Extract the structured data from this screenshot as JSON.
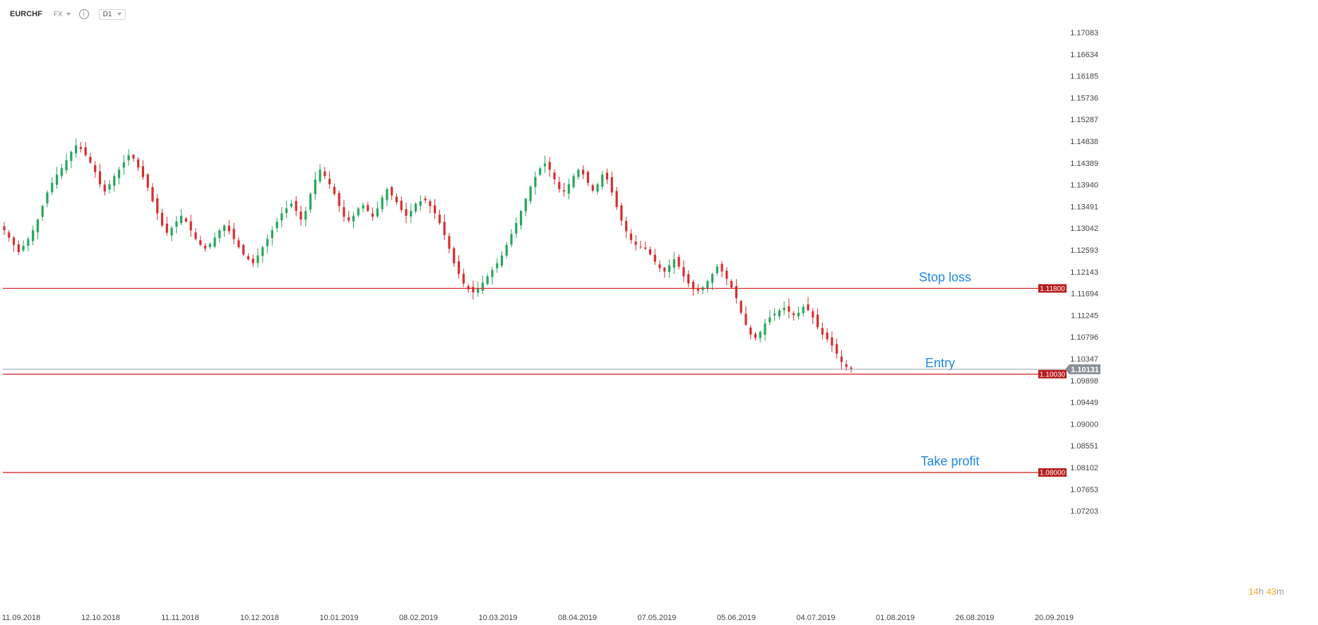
{
  "toolbar": {
    "symbol": "EURCHF",
    "market": "FX",
    "info_icon": "info-icon",
    "timeframe": "D1"
  },
  "price_axis": {
    "ticks": [
      "1.17083",
      "1.16634",
      "1.16185",
      "1.15736",
      "1.15287",
      "1.14838",
      "1.14389",
      "1.13940",
      "1.13491",
      "1.13042",
      "1.12593",
      "1.12143",
      "1.11694",
      "1.11245",
      "1.10796",
      "1.10347",
      "1.09898",
      "1.09449",
      "1.09000",
      "1.08551",
      "1.08102",
      "1.07653",
      "1.07203"
    ]
  },
  "time_axis": {
    "ticks": [
      "11.09.2018",
      "12.10.2018",
      "11.11.2018",
      "10.12.2018",
      "10.01.2019",
      "08.02.2019",
      "10.03.2019",
      "08.04.2019",
      "07.05.2019",
      "05.06.2019",
      "04.07.2019",
      "01.08.2019",
      "26.08.2019",
      "20.09.2019"
    ]
  },
  "levels": {
    "stop_loss": {
      "name": "Stop loss",
      "price": 1.118,
      "tag": "1.11800"
    },
    "entry": {
      "name": "Entry",
      "price": 1.1003,
      "tag": "1.10030"
    },
    "take_profit": {
      "name": "Take profit",
      "price": 1.08,
      "tag": "1.08000"
    }
  },
  "current_price": {
    "price": 1.10131,
    "tag": "1.10131"
  },
  "timer": {
    "hours": "14",
    "h_unit": "h",
    "minutes": "43",
    "m_unit": "m"
  },
  "colors": {
    "bull": "#26a65b",
    "bear": "#d32f2f",
    "level_line": "#d32f2f",
    "level_tag": "#b71c1c",
    "label_text": "#1e88e5",
    "current_tag": "#8a8f98"
  },
  "chart_data": {
    "type": "candlestick",
    "title": "",
    "xlabel": "",
    "ylabel": "",
    "ylim": [
      1.07203,
      1.17083
    ],
    "close_path": [
      1.13,
      1.1285,
      1.127,
      1.1255,
      1.1268,
      1.1282,
      1.13,
      1.1322,
      1.135,
      1.1378,
      1.1398,
      1.1415,
      1.1428,
      1.1445,
      1.1462,
      1.1475,
      1.1468,
      1.1455,
      1.144,
      1.142,
      1.1395,
      1.138,
      1.1395,
      1.1412,
      1.1425,
      1.144,
      1.1455,
      1.1448,
      1.143,
      1.141,
      1.1388,
      1.136,
      1.1335,
      1.131,
      1.1295,
      1.1305,
      1.1318,
      1.133,
      1.1318,
      1.13,
      1.1282,
      1.127,
      1.1262,
      1.1272,
      1.1285,
      1.13,
      1.131,
      1.1298,
      1.1282,
      1.1265,
      1.125,
      1.124,
      1.1232,
      1.1248,
      1.1265,
      1.1282,
      1.13,
      1.1318,
      1.1335,
      1.1345,
      1.1355,
      1.134,
      1.1322,
      1.134,
      1.1375,
      1.1405,
      1.1425,
      1.1412,
      1.1395,
      1.1375,
      1.135,
      1.1328,
      1.132,
      1.133,
      1.1345,
      1.1352,
      1.134,
      1.1328,
      1.1345,
      1.1368,
      1.1385,
      1.1372,
      1.1358,
      1.1342,
      1.133,
      1.134,
      1.1355,
      1.136,
      1.1362,
      1.135,
      1.1335,
      1.1315,
      1.129,
      1.1262,
      1.1232,
      1.121,
      1.119,
      1.1178,
      1.1172,
      1.118,
      1.1192,
      1.1205,
      1.1218,
      1.1232,
      1.1248,
      1.127,
      1.1292,
      1.1315,
      1.134,
      1.1365,
      1.139,
      1.141,
      1.1428,
      1.1438,
      1.1425,
      1.1405,
      1.1385,
      1.138,
      1.1395,
      1.1412,
      1.1425,
      1.1415,
      1.1398,
      1.1382,
      1.1395,
      1.1415,
      1.1405,
      1.1378,
      1.1348,
      1.132,
      1.1298,
      1.128,
      1.127,
      1.1265,
      1.1262,
      1.125,
      1.1235,
      1.1222,
      1.1215,
      1.1228,
      1.124,
      1.1225,
      1.1205,
      1.119,
      1.1178,
      1.1175,
      1.1182,
      1.1195,
      1.121,
      1.1225,
      1.1215,
      1.12,
      1.1182,
      1.116,
      1.113,
      1.1105,
      1.1085,
      1.1078,
      1.109,
      1.1108,
      1.112,
      1.1128,
      1.1135,
      1.114,
      1.1132,
      1.1125,
      1.113,
      1.1142,
      1.1135,
      1.112,
      1.11,
      1.1085,
      1.1075,
      1.1062,
      1.1045,
      1.1028,
      1.1018,
      1.1013
    ]
  }
}
